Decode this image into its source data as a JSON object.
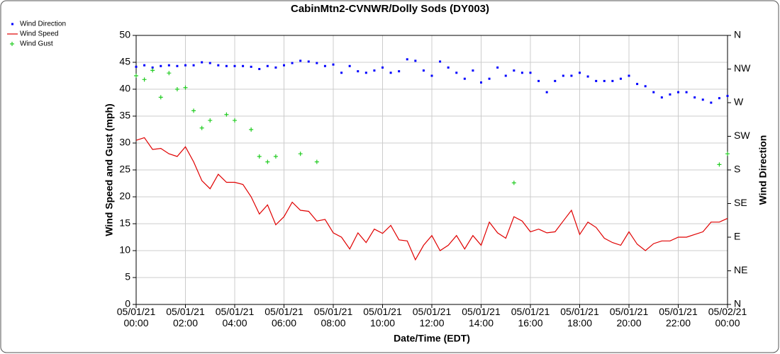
{
  "chart_data": {
    "type": "line",
    "title": "CabinMtn2-CVNWR/Dolly Sods (DY003)",
    "x_label": "Date/Time (EDT)",
    "y_label": "Wind Speed and Gust (mph)",
    "y2_label": "Wind Direction",
    "x": [
      "05/01/21 00:00",
      "05/01/21 00:20",
      "05/01/21 00:40",
      "05/01/21 01:00",
      "05/01/21 01:20",
      "05/01/21 01:40",
      "05/01/21 02:00",
      "05/01/21 02:20",
      "05/01/21 02:40",
      "05/01/21 03:00",
      "05/01/21 03:20",
      "05/01/21 03:40",
      "05/01/21 04:00",
      "05/01/21 04:20",
      "05/01/21 04:40",
      "05/01/21 05:00",
      "05/01/21 05:20",
      "05/01/21 05:40",
      "05/01/21 06:00",
      "05/01/21 06:20",
      "05/01/21 06:40",
      "05/01/21 07:00",
      "05/01/21 07:20",
      "05/01/21 07:40",
      "05/01/21 08:00",
      "05/01/21 08:20",
      "05/01/21 08:40",
      "05/01/21 09:00",
      "05/01/21 09:20",
      "05/01/21 09:40",
      "05/01/21 10:00",
      "05/01/21 10:20",
      "05/01/21 10:40",
      "05/01/21 11:00",
      "05/01/21 11:20",
      "05/01/21 11:40",
      "05/01/21 12:00",
      "05/01/21 12:20",
      "05/01/21 12:40",
      "05/01/21 13:00",
      "05/01/21 13:20",
      "05/01/21 13:40",
      "05/01/21 14:00",
      "05/01/21 14:20",
      "05/01/21 14:40",
      "05/01/21 15:00",
      "05/01/21 15:20",
      "05/01/21 15:40",
      "05/01/21 16:00",
      "05/01/21 16:20",
      "05/01/21 16:40",
      "05/01/21 17:00",
      "05/01/21 17:20",
      "05/01/21 17:40",
      "05/01/21 18:00",
      "05/01/21 18:20",
      "05/01/21 18:40",
      "05/01/21 19:00",
      "05/01/21 19:20",
      "05/01/21 19:40",
      "05/01/21 20:00",
      "05/01/21 20:20",
      "05/01/21 20:40",
      "05/01/21 21:00",
      "05/01/21 21:20",
      "05/01/21 21:40",
      "05/01/21 22:00",
      "05/01/21 22:20",
      "05/01/21 22:40",
      "05/01/21 23:00",
      "05/01/21 23:20",
      "05/01/21 23:40",
      "05/02/21 00:00"
    ],
    "series": [
      {
        "name": "Wind Direction",
        "color": "#0000ff",
        "axis": "y2",
        "marker": "dot",
        "values": [
          318,
          320,
          317,
          319,
          320,
          319,
          320,
          320,
          324,
          323,
          320,
          319,
          319,
          319,
          318,
          315,
          319,
          317,
          320,
          323,
          326,
          325,
          323,
          319,
          321,
          310,
          319,
          312,
          310,
          313,
          317,
          310,
          312,
          328,
          326,
          313,
          306,
          325,
          317,
          310,
          302,
          313,
          297,
          302,
          317,
          306,
          313,
          310,
          310,
          299,
          284,
          299,
          306,
          306,
          310,
          305,
          299,
          299,
          299,
          302,
          306,
          295,
          292,
          284,
          277,
          281,
          284,
          284,
          277,
          274,
          270,
          276,
          279
        ]
      },
      {
        "name": "Wind Speed",
        "color": "#e00000",
        "marker": "line",
        "values": [
          30.5,
          31,
          28.8,
          29,
          28,
          27.5,
          29.3,
          26.5,
          23,
          21.5,
          24.2,
          22.7,
          22.7,
          22.3,
          20,
          16.8,
          18.5,
          14.8,
          16.3,
          19,
          17.5,
          17.3,
          15.5,
          15.8,
          13.3,
          12.5,
          10.3,
          13.3,
          11.5,
          14,
          13.2,
          14.7,
          12,
          11.8,
          8.3,
          11,
          12.8,
          10,
          11,
          12.8,
          10.3,
          12.8,
          11,
          15.3,
          13.3,
          12.3,
          16.3,
          15.5,
          13.5,
          14,
          13.3,
          13.5,
          15.5,
          17.5,
          13,
          15.3,
          14.3,
          12.3,
          11.5,
          11,
          13.5,
          11.2,
          10,
          11.3,
          11.8,
          11.8,
          12.5,
          12.5,
          13,
          13.5,
          15.3,
          15.3,
          16
        ]
      },
      {
        "name": "Wind Gust",
        "color": "#22cc22",
        "marker": "plus",
        "values": [
          42.5,
          41.8,
          43.5,
          38.5,
          43,
          40,
          40.3,
          36,
          32.8,
          34.2,
          null,
          35.3,
          34.2,
          null,
          32.5,
          27.5,
          26.5,
          27.5,
          null,
          null,
          28,
          null,
          26.5,
          null,
          null,
          null,
          null,
          null,
          null,
          null,
          null,
          null,
          null,
          null,
          null,
          null,
          null,
          null,
          null,
          null,
          null,
          null,
          null,
          null,
          null,
          null,
          22.6,
          null,
          null,
          null,
          null,
          null,
          null,
          null,
          null,
          null,
          null,
          null,
          null,
          null,
          null,
          null,
          null,
          null,
          null,
          null,
          null,
          null,
          null,
          null,
          null,
          26,
          28
        ]
      }
    ],
    "xlim": [
      "05/01/21 00:00",
      "05/02/21 00:00"
    ],
    "xticks": [
      "05/01/21 00:00",
      "05/01/21 02:00",
      "05/01/21 04:00",
      "05/01/21 06:00",
      "05/01/21 08:00",
      "05/01/21 10:00",
      "05/01/21 12:00",
      "05/01/21 14:00",
      "05/01/21 16:00",
      "05/01/21 18:00",
      "05/01/21 20:00",
      "05/01/21 22:00",
      "05/02/21 00:00"
    ],
    "ylim": [
      0,
      50
    ],
    "yticks": [
      0,
      5,
      10,
      15,
      20,
      25,
      30,
      35,
      40,
      45,
      50
    ],
    "y2lim": [
      0,
      360
    ],
    "y2ticks": [
      {
        "value": 0,
        "label": "N"
      },
      {
        "value": 45,
        "label": "NE"
      },
      {
        "value": 90,
        "label": "E"
      },
      {
        "value": 135,
        "label": "SE"
      },
      {
        "value": 180,
        "label": "S"
      },
      {
        "value": 225,
        "label": "SW"
      },
      {
        "value": 270,
        "label": "W"
      },
      {
        "value": 315,
        "label": "NW"
      },
      {
        "value": 360,
        "label": "N"
      }
    ],
    "grid": true,
    "legend": "top-left"
  }
}
